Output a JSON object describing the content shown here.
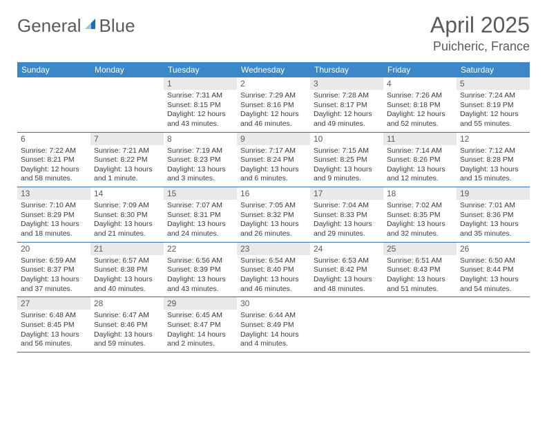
{
  "logo": {
    "text1": "General",
    "text2": "Blue"
  },
  "title": "April 2025",
  "location": "Puicheric, France",
  "header_color": "#3b87c8",
  "shade_color": "#e9e9e9",
  "divider_color": "#3b6fa0",
  "text_color": "#5a5a5a",
  "days": [
    "Sunday",
    "Monday",
    "Tuesday",
    "Wednesday",
    "Thursday",
    "Friday",
    "Saturday"
  ],
  "weeks": [
    [
      null,
      null,
      {
        "n": "1",
        "shaded": true,
        "sunrise": "Sunrise: 7:31 AM",
        "sunset": "Sunset: 8:15 PM",
        "day1": "Daylight: 12 hours",
        "day2": "and 43 minutes."
      },
      {
        "n": "2",
        "shaded": false,
        "sunrise": "Sunrise: 7:29 AM",
        "sunset": "Sunset: 8:16 PM",
        "day1": "Daylight: 12 hours",
        "day2": "and 46 minutes."
      },
      {
        "n": "3",
        "shaded": true,
        "sunrise": "Sunrise: 7:28 AM",
        "sunset": "Sunset: 8:17 PM",
        "day1": "Daylight: 12 hours",
        "day2": "and 49 minutes."
      },
      {
        "n": "4",
        "shaded": false,
        "sunrise": "Sunrise: 7:26 AM",
        "sunset": "Sunset: 8:18 PM",
        "day1": "Daylight: 12 hours",
        "day2": "and 52 minutes."
      },
      {
        "n": "5",
        "shaded": true,
        "sunrise": "Sunrise: 7:24 AM",
        "sunset": "Sunset: 8:19 PM",
        "day1": "Daylight: 12 hours",
        "day2": "and 55 minutes."
      }
    ],
    [
      {
        "n": "6",
        "shaded": false,
        "sunrise": "Sunrise: 7:22 AM",
        "sunset": "Sunset: 8:21 PM",
        "day1": "Daylight: 12 hours",
        "day2": "and 58 minutes."
      },
      {
        "n": "7",
        "shaded": true,
        "sunrise": "Sunrise: 7:21 AM",
        "sunset": "Sunset: 8:22 PM",
        "day1": "Daylight: 13 hours",
        "day2": "and 1 minute."
      },
      {
        "n": "8",
        "shaded": false,
        "sunrise": "Sunrise: 7:19 AM",
        "sunset": "Sunset: 8:23 PM",
        "day1": "Daylight: 13 hours",
        "day2": "and 3 minutes."
      },
      {
        "n": "9",
        "shaded": true,
        "sunrise": "Sunrise: 7:17 AM",
        "sunset": "Sunset: 8:24 PM",
        "day1": "Daylight: 13 hours",
        "day2": "and 6 minutes."
      },
      {
        "n": "10",
        "shaded": false,
        "sunrise": "Sunrise: 7:15 AM",
        "sunset": "Sunset: 8:25 PM",
        "day1": "Daylight: 13 hours",
        "day2": "and 9 minutes."
      },
      {
        "n": "11",
        "shaded": true,
        "sunrise": "Sunrise: 7:14 AM",
        "sunset": "Sunset: 8:26 PM",
        "day1": "Daylight: 13 hours",
        "day2": "and 12 minutes."
      },
      {
        "n": "12",
        "shaded": false,
        "sunrise": "Sunrise: 7:12 AM",
        "sunset": "Sunset: 8:28 PM",
        "day1": "Daylight: 13 hours",
        "day2": "and 15 minutes."
      }
    ],
    [
      {
        "n": "13",
        "shaded": true,
        "sunrise": "Sunrise: 7:10 AM",
        "sunset": "Sunset: 8:29 PM",
        "day1": "Daylight: 13 hours",
        "day2": "and 18 minutes."
      },
      {
        "n": "14",
        "shaded": false,
        "sunrise": "Sunrise: 7:09 AM",
        "sunset": "Sunset: 8:30 PM",
        "day1": "Daylight: 13 hours",
        "day2": "and 21 minutes."
      },
      {
        "n": "15",
        "shaded": true,
        "sunrise": "Sunrise: 7:07 AM",
        "sunset": "Sunset: 8:31 PM",
        "day1": "Daylight: 13 hours",
        "day2": "and 24 minutes."
      },
      {
        "n": "16",
        "shaded": false,
        "sunrise": "Sunrise: 7:05 AM",
        "sunset": "Sunset: 8:32 PM",
        "day1": "Daylight: 13 hours",
        "day2": "and 26 minutes."
      },
      {
        "n": "17",
        "shaded": true,
        "sunrise": "Sunrise: 7:04 AM",
        "sunset": "Sunset: 8:33 PM",
        "day1": "Daylight: 13 hours",
        "day2": "and 29 minutes."
      },
      {
        "n": "18",
        "shaded": false,
        "sunrise": "Sunrise: 7:02 AM",
        "sunset": "Sunset: 8:35 PM",
        "day1": "Daylight: 13 hours",
        "day2": "and 32 minutes."
      },
      {
        "n": "19",
        "shaded": true,
        "sunrise": "Sunrise: 7:01 AM",
        "sunset": "Sunset: 8:36 PM",
        "day1": "Daylight: 13 hours",
        "day2": "and 35 minutes."
      }
    ],
    [
      {
        "n": "20",
        "shaded": false,
        "sunrise": "Sunrise: 6:59 AM",
        "sunset": "Sunset: 8:37 PM",
        "day1": "Daylight: 13 hours",
        "day2": "and 37 minutes."
      },
      {
        "n": "21",
        "shaded": true,
        "sunrise": "Sunrise: 6:57 AM",
        "sunset": "Sunset: 8:38 PM",
        "day1": "Daylight: 13 hours",
        "day2": "and 40 minutes."
      },
      {
        "n": "22",
        "shaded": false,
        "sunrise": "Sunrise: 6:56 AM",
        "sunset": "Sunset: 8:39 PM",
        "day1": "Daylight: 13 hours",
        "day2": "and 43 minutes."
      },
      {
        "n": "23",
        "shaded": true,
        "sunrise": "Sunrise: 6:54 AM",
        "sunset": "Sunset: 8:40 PM",
        "day1": "Daylight: 13 hours",
        "day2": "and 46 minutes."
      },
      {
        "n": "24",
        "shaded": false,
        "sunrise": "Sunrise: 6:53 AM",
        "sunset": "Sunset: 8:42 PM",
        "day1": "Daylight: 13 hours",
        "day2": "and 48 minutes."
      },
      {
        "n": "25",
        "shaded": true,
        "sunrise": "Sunrise: 6:51 AM",
        "sunset": "Sunset: 8:43 PM",
        "day1": "Daylight: 13 hours",
        "day2": "and 51 minutes."
      },
      {
        "n": "26",
        "shaded": false,
        "sunrise": "Sunrise: 6:50 AM",
        "sunset": "Sunset: 8:44 PM",
        "day1": "Daylight: 13 hours",
        "day2": "and 54 minutes."
      }
    ],
    [
      {
        "n": "27",
        "shaded": true,
        "sunrise": "Sunrise: 6:48 AM",
        "sunset": "Sunset: 8:45 PM",
        "day1": "Daylight: 13 hours",
        "day2": "and 56 minutes."
      },
      {
        "n": "28",
        "shaded": false,
        "sunrise": "Sunrise: 6:47 AM",
        "sunset": "Sunset: 8:46 PM",
        "day1": "Daylight: 13 hours",
        "day2": "and 59 minutes."
      },
      {
        "n": "29",
        "shaded": true,
        "sunrise": "Sunrise: 6:45 AM",
        "sunset": "Sunset: 8:47 PM",
        "day1": "Daylight: 14 hours",
        "day2": "and 2 minutes."
      },
      {
        "n": "30",
        "shaded": false,
        "sunrise": "Sunrise: 6:44 AM",
        "sunset": "Sunset: 8:49 PM",
        "day1": "Daylight: 14 hours",
        "day2": "and 4 minutes."
      },
      null,
      null,
      null
    ]
  ]
}
